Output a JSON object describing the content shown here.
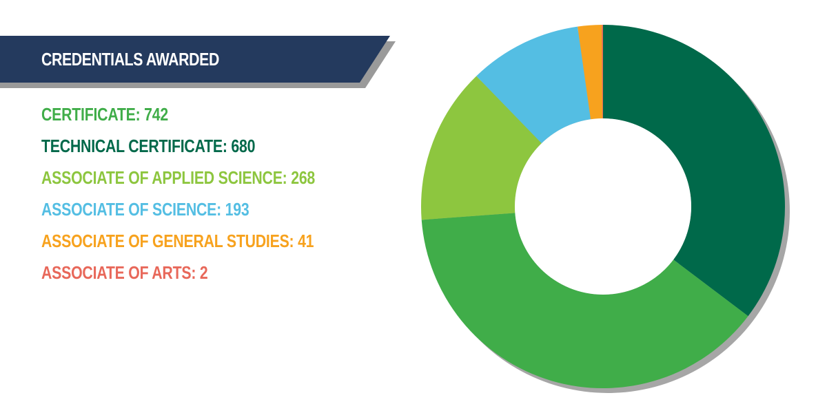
{
  "header": {
    "title": "CREDENTIALS AWARDED",
    "banner_color": "#243a5e",
    "banner_shadow": "#9a9a9a"
  },
  "chart_data": {
    "type": "pie",
    "donut": true,
    "title": "CREDENTIALS AWARDED",
    "categories": [
      "TECHNICAL CERTIFICATE",
      "CERTIFICATE",
      "ASSOCIATE OF APPLIED SCIENCE",
      "ASSOCIATE OF SCIENCE",
      "ASSOCIATE OF GENERAL STUDIES",
      "ASSOCIATE OF ARTS"
    ],
    "values": [
      680,
      742,
      268,
      193,
      41,
      2
    ],
    "colors": [
      "#00694a",
      "#40ad49",
      "#8dc63f",
      "#54bee3",
      "#f7a21e",
      "#e8685a"
    ],
    "start": "12 o'clock",
    "direction": "clockwise",
    "legend": [
      {
        "text": "CERTIFICATE: 742",
        "color": "#40ad49"
      },
      {
        "text": "TECHNICAL CERTIFICATE: 680",
        "color": "#00694a"
      },
      {
        "text": "ASSOCIATE OF APPLIED SCIENCE: 268",
        "color": "#8dc63f"
      },
      {
        "text": "ASSOCIATE OF SCIENCE: 193",
        "color": "#54bee3"
      },
      {
        "text": "ASSOCIATE OF GENERAL STUDIES: 41",
        "color": "#f7a21e"
      },
      {
        "text": "ASSOCIATE OF ARTS: 2",
        "color": "#e8685a"
      }
    ],
    "shadow_color": "#a6a6a6"
  }
}
